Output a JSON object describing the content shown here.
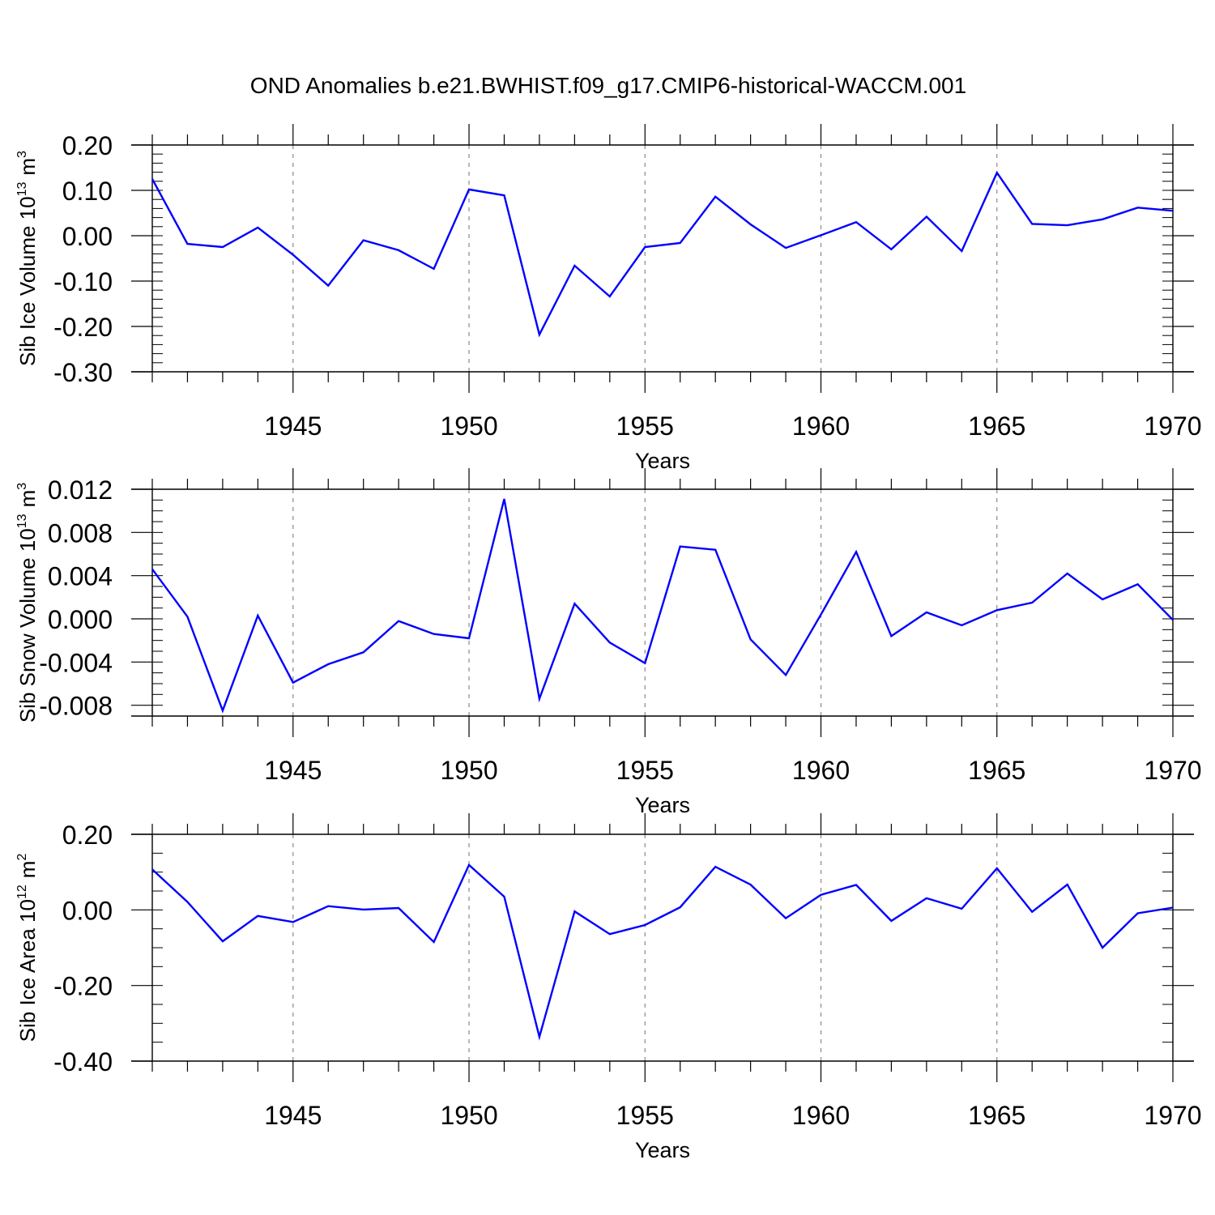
{
  "title": "OND Anomalies b.e21.BWHIST.f09_g17.CMIP6-historical-WACCM.001",
  "colors": {
    "line": "#0000ff",
    "axis": "#000000",
    "grid": "#8a8a8a"
  },
  "chart_data": [
    {
      "type": "line",
      "ylabel_main": "Sib Ice Volume 10",
      "ylabel_exp": "13",
      "ylabel_unit": "m",
      "ylabel_unit_exp": "3",
      "xlabel": "Years",
      "xlim": [
        1941,
        1970
      ],
      "ylim": [
        -0.3,
        0.2
      ],
      "yticks": [
        -0.3,
        -0.2,
        -0.1,
        0.0,
        0.1,
        0.2
      ],
      "ytick_labels": [
        "-0.30",
        "-0.20",
        "-0.10",
        "0.00",
        "0.10",
        "0.20"
      ],
      "y_minor_step": 0.02,
      "xticks": [
        1945,
        1950,
        1955,
        1960,
        1965,
        1970
      ],
      "xtick_labels": [
        "1945",
        "1950",
        "1955",
        "1960",
        "1965",
        "1970"
      ],
      "grid_x": [
        1945,
        1950,
        1955,
        1960,
        1965
      ],
      "x": [
        1941,
        1942,
        1943,
        1944,
        1945,
        1946,
        1947,
        1948,
        1949,
        1950,
        1951,
        1952,
        1953,
        1954,
        1955,
        1956,
        1957,
        1958,
        1959,
        1960,
        1961,
        1962,
        1963,
        1964,
        1965,
        1966,
        1967,
        1968,
        1969,
        1970
      ],
      "values": [
        0.125,
        -0.018,
        -0.025,
        0.018,
        -0.042,
        -0.11,
        -0.01,
        -0.032,
        -0.073,
        0.102,
        0.089,
        -0.218,
        -0.066,
        -0.134,
        -0.025,
        -0.016,
        0.086,
        0.025,
        -0.027,
        0.001,
        0.03,
        -0.03,
        0.042,
        -0.034,
        0.139,
        0.026,
        0.023,
        0.036,
        0.062,
        0.055
      ]
    },
    {
      "type": "line",
      "ylabel_main": "Sib Snow Volume 10",
      "ylabel_exp": "13",
      "ylabel_unit": "m",
      "ylabel_unit_exp": "3",
      "xlabel": "Years",
      "xlim": [
        1941,
        1970
      ],
      "ylim": [
        -0.009,
        0.012
      ],
      "yticks": [
        -0.008,
        -0.004,
        0.0,
        0.004,
        0.008,
        0.012
      ],
      "ytick_labels": [
        "-0.008",
        "-0.004",
        "0.000",
        "0.004",
        "0.008",
        "0.012"
      ],
      "y_minor_step": 0.001,
      "xticks": [
        1945,
        1950,
        1955,
        1960,
        1965,
        1970
      ],
      "xtick_labels": [
        "1945",
        "1950",
        "1955",
        "1960",
        "1965",
        "1970"
      ],
      "grid_x": [
        1945,
        1950,
        1955,
        1960,
        1965
      ],
      "x": [
        1941,
        1942,
        1943,
        1944,
        1945,
        1946,
        1947,
        1948,
        1949,
        1950,
        1951,
        1952,
        1953,
        1954,
        1955,
        1956,
        1957,
        1958,
        1959,
        1960,
        1961,
        1962,
        1963,
        1964,
        1965,
        1966,
        1967,
        1968,
        1969,
        1970
      ],
      "values": [
        0.0046,
        0.0002,
        -0.0085,
        0.0003,
        -0.0059,
        -0.0042,
        -0.0031,
        -0.0002,
        -0.0014,
        -0.0018,
        0.0111,
        -0.0074,
        0.0014,
        -0.0022,
        -0.0041,
        0.0067,
        0.0064,
        -0.0019,
        -0.0052,
        0.0004,
        0.0062,
        -0.0016,
        0.0006,
        -0.0006,
        0.0008,
        0.0015,
        0.0042,
        0.0018,
        0.0032,
        -0.0001
      ]
    },
    {
      "type": "line",
      "ylabel_main": "Sib Ice Area 10",
      "ylabel_exp": "12",
      "ylabel_unit": "m",
      "ylabel_unit_exp": "2",
      "xlabel": "Years",
      "xlim": [
        1941,
        1970
      ],
      "ylim": [
        -0.4,
        0.2
      ],
      "yticks": [
        -0.4,
        -0.2,
        0.0,
        0.2
      ],
      "ytick_labels": [
        "-0.40",
        "-0.20",
        "0.00",
        "0.20"
      ],
      "y_minor_step": 0.05,
      "xticks": [
        1945,
        1950,
        1955,
        1960,
        1965,
        1970
      ],
      "xtick_labels": [
        "1945",
        "1950",
        "1955",
        "1960",
        "1965",
        "1970"
      ],
      "grid_x": [
        1945,
        1950,
        1955,
        1960,
        1965
      ],
      "x": [
        1941,
        1942,
        1943,
        1944,
        1945,
        1946,
        1947,
        1948,
        1949,
        1950,
        1951,
        1952,
        1953,
        1954,
        1955,
        1956,
        1957,
        1958,
        1959,
        1960,
        1961,
        1962,
        1963,
        1964,
        1965,
        1966,
        1967,
        1968,
        1969,
        1970
      ],
      "values": [
        0.107,
        0.021,
        -0.083,
        -0.016,
        -0.032,
        0.01,
        0.001,
        0.005,
        -0.085,
        0.119,
        0.035,
        -0.336,
        -0.004,
        -0.064,
        -0.04,
        0.007,
        0.114,
        0.067,
        -0.022,
        0.04,
        0.066,
        -0.029,
        0.031,
        0.003,
        0.11,
        -0.005,
        0.067,
        -0.1,
        -0.009,
        0.006
      ]
    }
  ]
}
